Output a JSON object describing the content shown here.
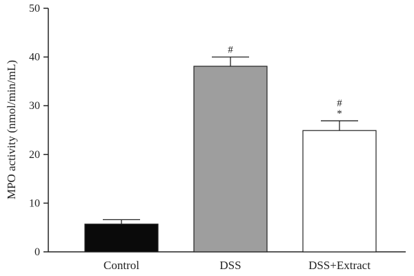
{
  "chart_data": {
    "type": "bar",
    "categories": [
      "Control",
      "DSS",
      "DSS+Extract"
    ],
    "values": [
      5.7,
      38.1,
      24.9
    ],
    "errors": [
      0.9,
      1.9,
      2.0
    ],
    "bar_colors": [
      "#0a0a0a",
      "#9e9e9e",
      "#ffffff"
    ],
    "annotations": [
      [],
      [
        "#"
      ],
      [
        "*",
        "#"
      ]
    ],
    "title": "",
    "xlabel": "",
    "ylabel": "MPO activity (nmol/min/mL)",
    "ylim": [
      0,
      50
    ],
    "yticks": [
      0,
      10,
      20,
      30,
      40,
      50
    ],
    "grid": false,
    "legend": "none"
  }
}
